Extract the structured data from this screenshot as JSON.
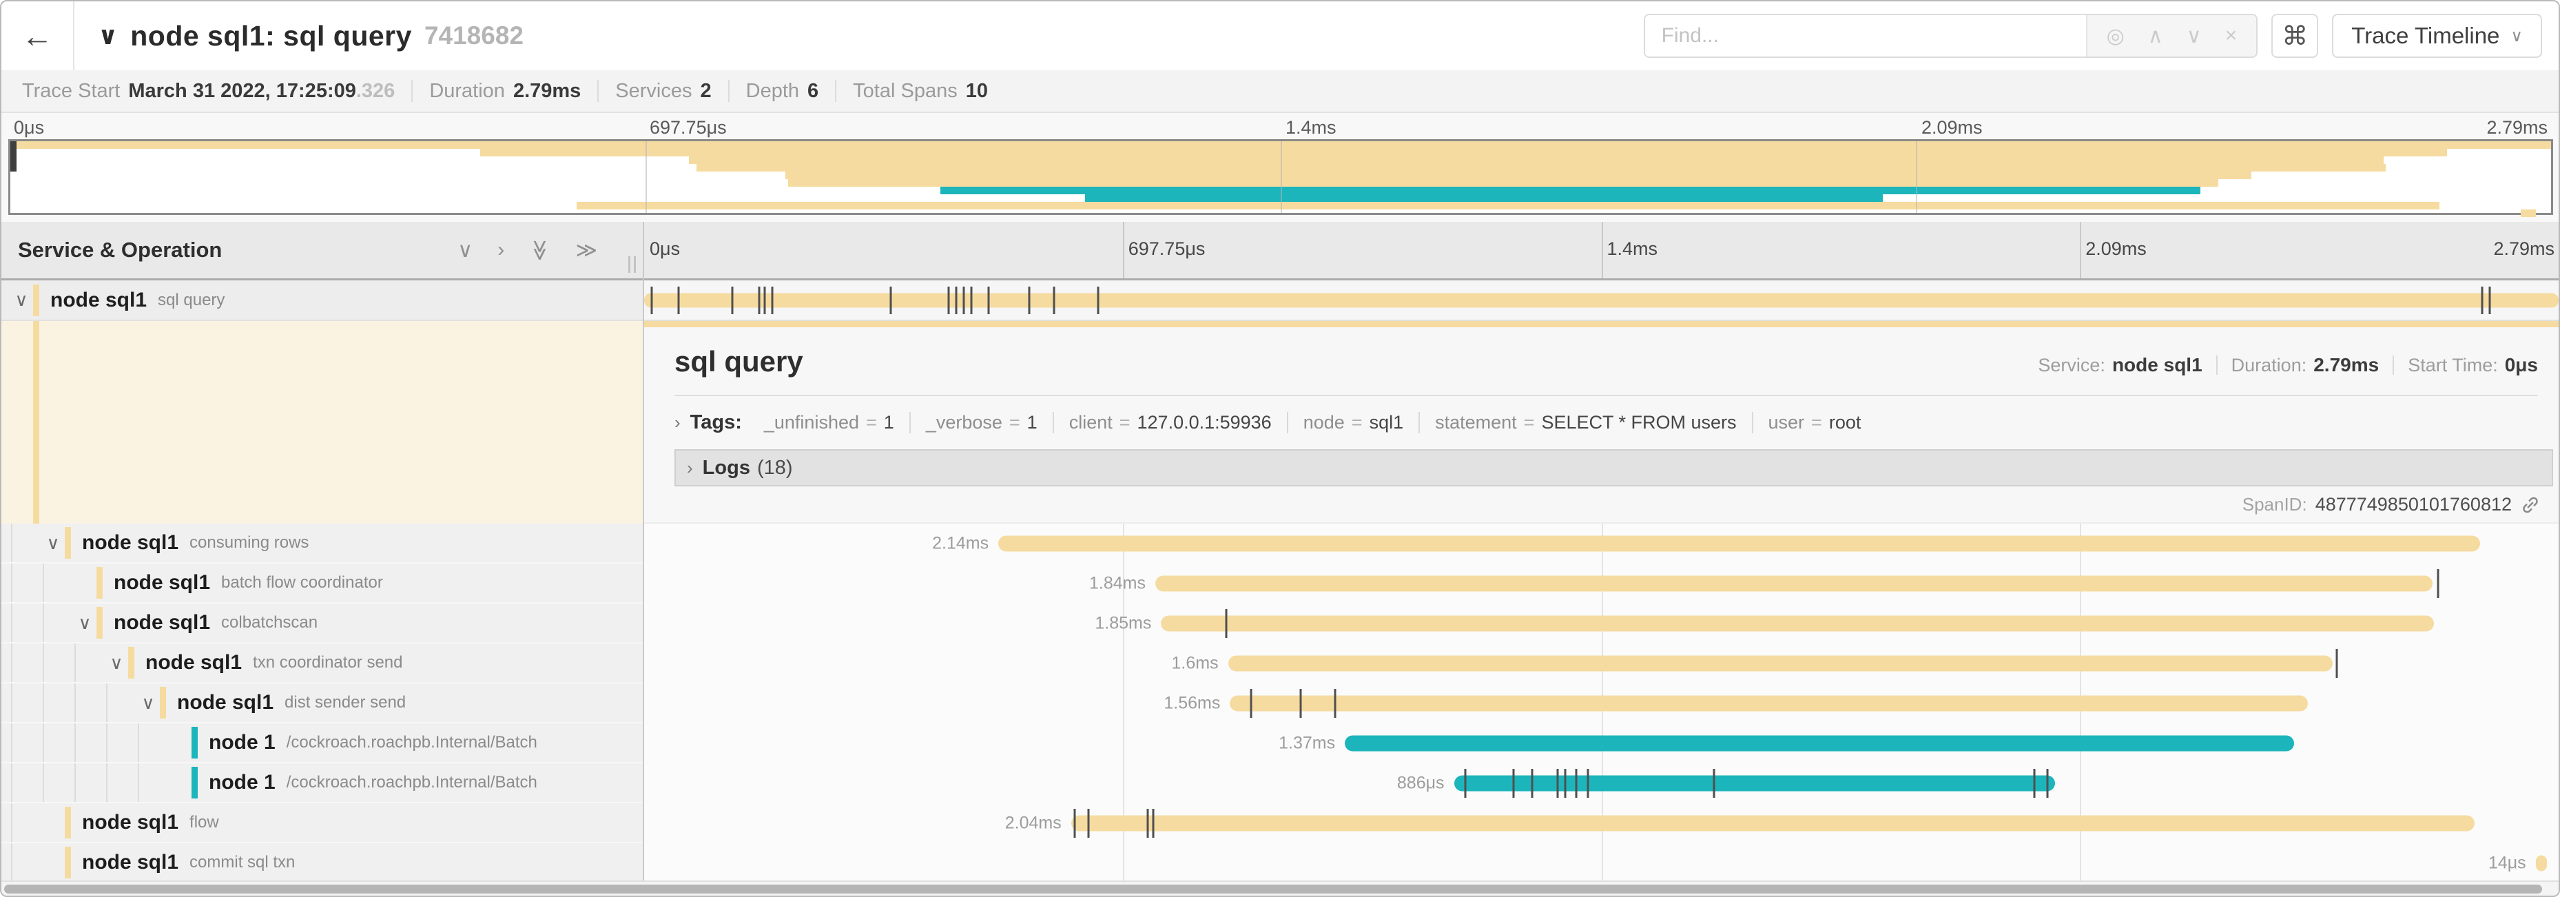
{
  "header": {
    "back_icon": "←",
    "collapse_icon": "∨",
    "title": "node sql1: sql query",
    "trace_id_short": "7418682",
    "find": {
      "placeholder": "Find...",
      "locate_icon": "◎",
      "prev_icon": "∧",
      "next_icon": "∨",
      "clear_icon": "×"
    },
    "shortcuts_icon": "⌘",
    "view_selector": {
      "label": "Trace Timeline",
      "chevron": "∨"
    }
  },
  "trace_info": {
    "items": [
      {
        "label": "Trace Start",
        "value": "March 31 2022, 17:25:09",
        "suffix": ".326"
      },
      {
        "label": "Duration",
        "value": "2.79ms",
        "suffix": ""
      },
      {
        "label": "Services",
        "value": "2",
        "suffix": ""
      },
      {
        "label": "Depth",
        "value": "6",
        "suffix": ""
      },
      {
        "label": "Total Spans",
        "value": "10",
        "suffix": ""
      }
    ]
  },
  "colors": {
    "tan": "#F6DBA0",
    "teal": "#1CB5BC",
    "cream": "#FBF3E2"
  },
  "axis": {
    "ticks": [
      {
        "label": "0μs",
        "pct": 0
      },
      {
        "label": "697.75μs",
        "pct": 25
      },
      {
        "label": "1.4ms",
        "pct": 50
      },
      {
        "label": "2.09ms",
        "pct": 75
      },
      {
        "label": "2.79ms",
        "pct": 100
      }
    ]
  },
  "left_panel": {
    "title": "Service & Operation",
    "icons": [
      {
        "name": "collapse-one-icon",
        "glyph": "∨",
        "rotate": false
      },
      {
        "name": "expand-one-icon",
        "glyph": "›",
        "rotate": false
      },
      {
        "name": "collapse-all-icon",
        "glyph": "≫",
        "rotate": true
      },
      {
        "name": "expand-all-icon",
        "glyph": "≫",
        "rotate": false
      }
    ]
  },
  "detail": {
    "title": "sql query",
    "meta": [
      {
        "label": "Service:",
        "value": "node sql1"
      },
      {
        "label": "Duration:",
        "value": "2.79ms"
      },
      {
        "label": "Start Time:",
        "value": "0μs"
      }
    ],
    "caret": "›",
    "tags_label": "Tags:",
    "tags": [
      {
        "key": "_unfinished",
        "value": "1"
      },
      {
        "key": "_verbose",
        "value": "1"
      },
      {
        "key": "client",
        "value": "127.0.0.1:59936"
      },
      {
        "key": "node",
        "value": "sql1"
      },
      {
        "key": "statement",
        "value": "SELECT * FROM users"
      },
      {
        "key": "user",
        "value": "root"
      }
    ],
    "logs_label": "Logs",
    "logs_count": "(18)",
    "span_id_label": "SpanID:",
    "span_id": "4877749850101760812"
  },
  "spans": [
    {
      "service": "node sql1",
      "operation": "sql query",
      "level": 0,
      "toggle": true,
      "color": "tan",
      "start_pct": 0,
      "end_pct": 100,
      "duration_label": "",
      "ticks": [
        0.4,
        1.8,
        4.6,
        6.0,
        6.3,
        6.7,
        12.9,
        15.9,
        16.3,
        16.7,
        17.1,
        18.0,
        20.1,
        21.4,
        23.7,
        96.0,
        96.4
      ]
    },
    {
      "service": "node sql1",
      "operation": "consuming rows",
      "level": 1,
      "toggle": true,
      "color": "tan",
      "start_pct": 18.5,
      "end_pct": 95.9,
      "duration_label": "2.14ms",
      "ticks": []
    },
    {
      "service": "node sql1",
      "operation": "batch flow coordinator",
      "level": 2,
      "toggle": false,
      "color": "tan",
      "start_pct": 26.7,
      "end_pct": 93.4,
      "duration_label": "1.84ms",
      "ticks": [
        93.7
      ]
    },
    {
      "service": "node sql1",
      "operation": "colbatchscan",
      "level": 2,
      "toggle": true,
      "color": "tan",
      "start_pct": 27.0,
      "end_pct": 93.5,
      "duration_label": "1.85ms",
      "ticks": [
        30.4
      ]
    },
    {
      "service": "node sql1",
      "operation": "txn coordinator send",
      "level": 3,
      "toggle": true,
      "color": "tan",
      "start_pct": 30.5,
      "end_pct": 88.2,
      "duration_label": "1.6ms",
      "ticks": [
        88.4
      ]
    },
    {
      "service": "node sql1",
      "operation": "dist sender send",
      "level": 4,
      "toggle": true,
      "color": "tan",
      "start_pct": 30.6,
      "end_pct": 86.9,
      "duration_label": "1.56ms",
      "ticks": [
        31.7,
        34.3,
        36.1
      ]
    },
    {
      "service": "node 1",
      "operation": "/cockroach.roachpb.Internal/Batch",
      "level": 5,
      "toggle": false,
      "color": "teal",
      "start_pct": 36.6,
      "end_pct": 86.2,
      "duration_label": "1.37ms",
      "ticks": []
    },
    {
      "service": "node 1",
      "operation": "/cockroach.roachpb.Internal/Batch",
      "level": 5,
      "toggle": false,
      "color": "teal",
      "start_pct": 42.3,
      "end_pct": 73.7,
      "duration_label": "886μs",
      "ticks": [
        42.9,
        45.4,
        46.4,
        47.7,
        48.1,
        48.7,
        49.3,
        55.9,
        72.6,
        73.3
      ]
    },
    {
      "service": "node sql1",
      "operation": "flow",
      "level": 1,
      "toggle": false,
      "color": "tan",
      "start_pct": 22.3,
      "end_pct": 95.6,
      "duration_label": "2.04ms",
      "ticks": [
        22.5,
        23.2,
        26.3,
        26.6
      ]
    },
    {
      "service": "node sql1",
      "operation": "commit sql txn",
      "level": 1,
      "toggle": false,
      "color": "tan",
      "start_pct": 98.8,
      "end_pct": 99.4,
      "duration_label": "14μs",
      "ticks": []
    }
  ]
}
